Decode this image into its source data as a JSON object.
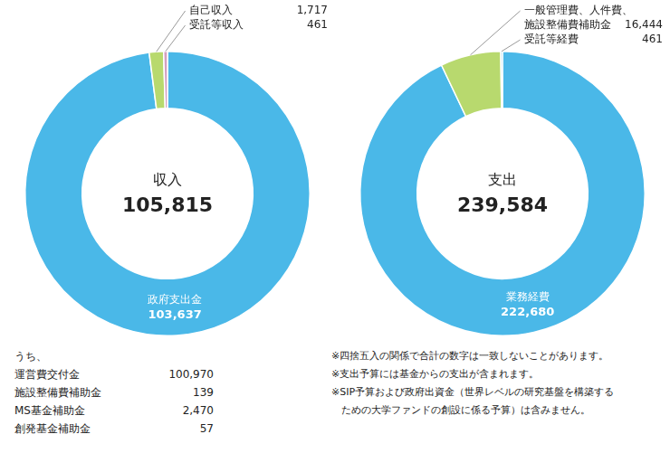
{
  "chart_data": [
    {
      "type": "doughnut",
      "center_label": "収入",
      "center_value": {
        "value": 105815,
        "label": "105,815"
      },
      "categories": [
        "政府支出金",
        "自己収入",
        "受託等収入"
      ],
      "values": [
        103637,
        1717,
        461
      ],
      "value_labels": [
        "103,637",
        "1,717",
        "461"
      ],
      "colors": [
        "#4ab8e8",
        "#b8d96e",
        "#d4a0c0"
      ],
      "data_labels": true,
      "legend": false,
      "breakdown_heading": "うち、",
      "breakdown": [
        {
          "name": "運営費交付金",
          "value": 100970,
          "label": "100,970"
        },
        {
          "name": "施設整備費補助金",
          "value": 139,
          "label": "139"
        },
        {
          "name": "MS基金補助金",
          "value": 2470,
          "label": "2,470"
        },
        {
          "name": "創発基金補助金",
          "value": 57,
          "label": "57"
        }
      ]
    },
    {
      "type": "doughnut",
      "center_label": "支出",
      "center_value": {
        "value": 239584,
        "label": "239,584"
      },
      "categories": [
        "業務経費",
        "一般管理費、人件費、施設整備費補助金",
        "受託等経費"
      ],
      "values": [
        222680,
        16444,
        461
      ],
      "value_labels": [
        "222,680",
        "16,444",
        "461"
      ],
      "colors": [
        "#4ab8e8",
        "#b8d96e",
        "#4ab8e8"
      ],
      "data_labels": true,
      "legend": false,
      "footnotes": [
        "※四捨五入の関係で合計の数字は一致しないことがあります。",
        "※支出予算には基金からの支出が含まれます。",
        "※SIP予算および政府出資金（世界レベルの研究基盤を構築する",
        "　ための大学ファンドの創設に係る予算）は含みません。"
      ]
    }
  ]
}
